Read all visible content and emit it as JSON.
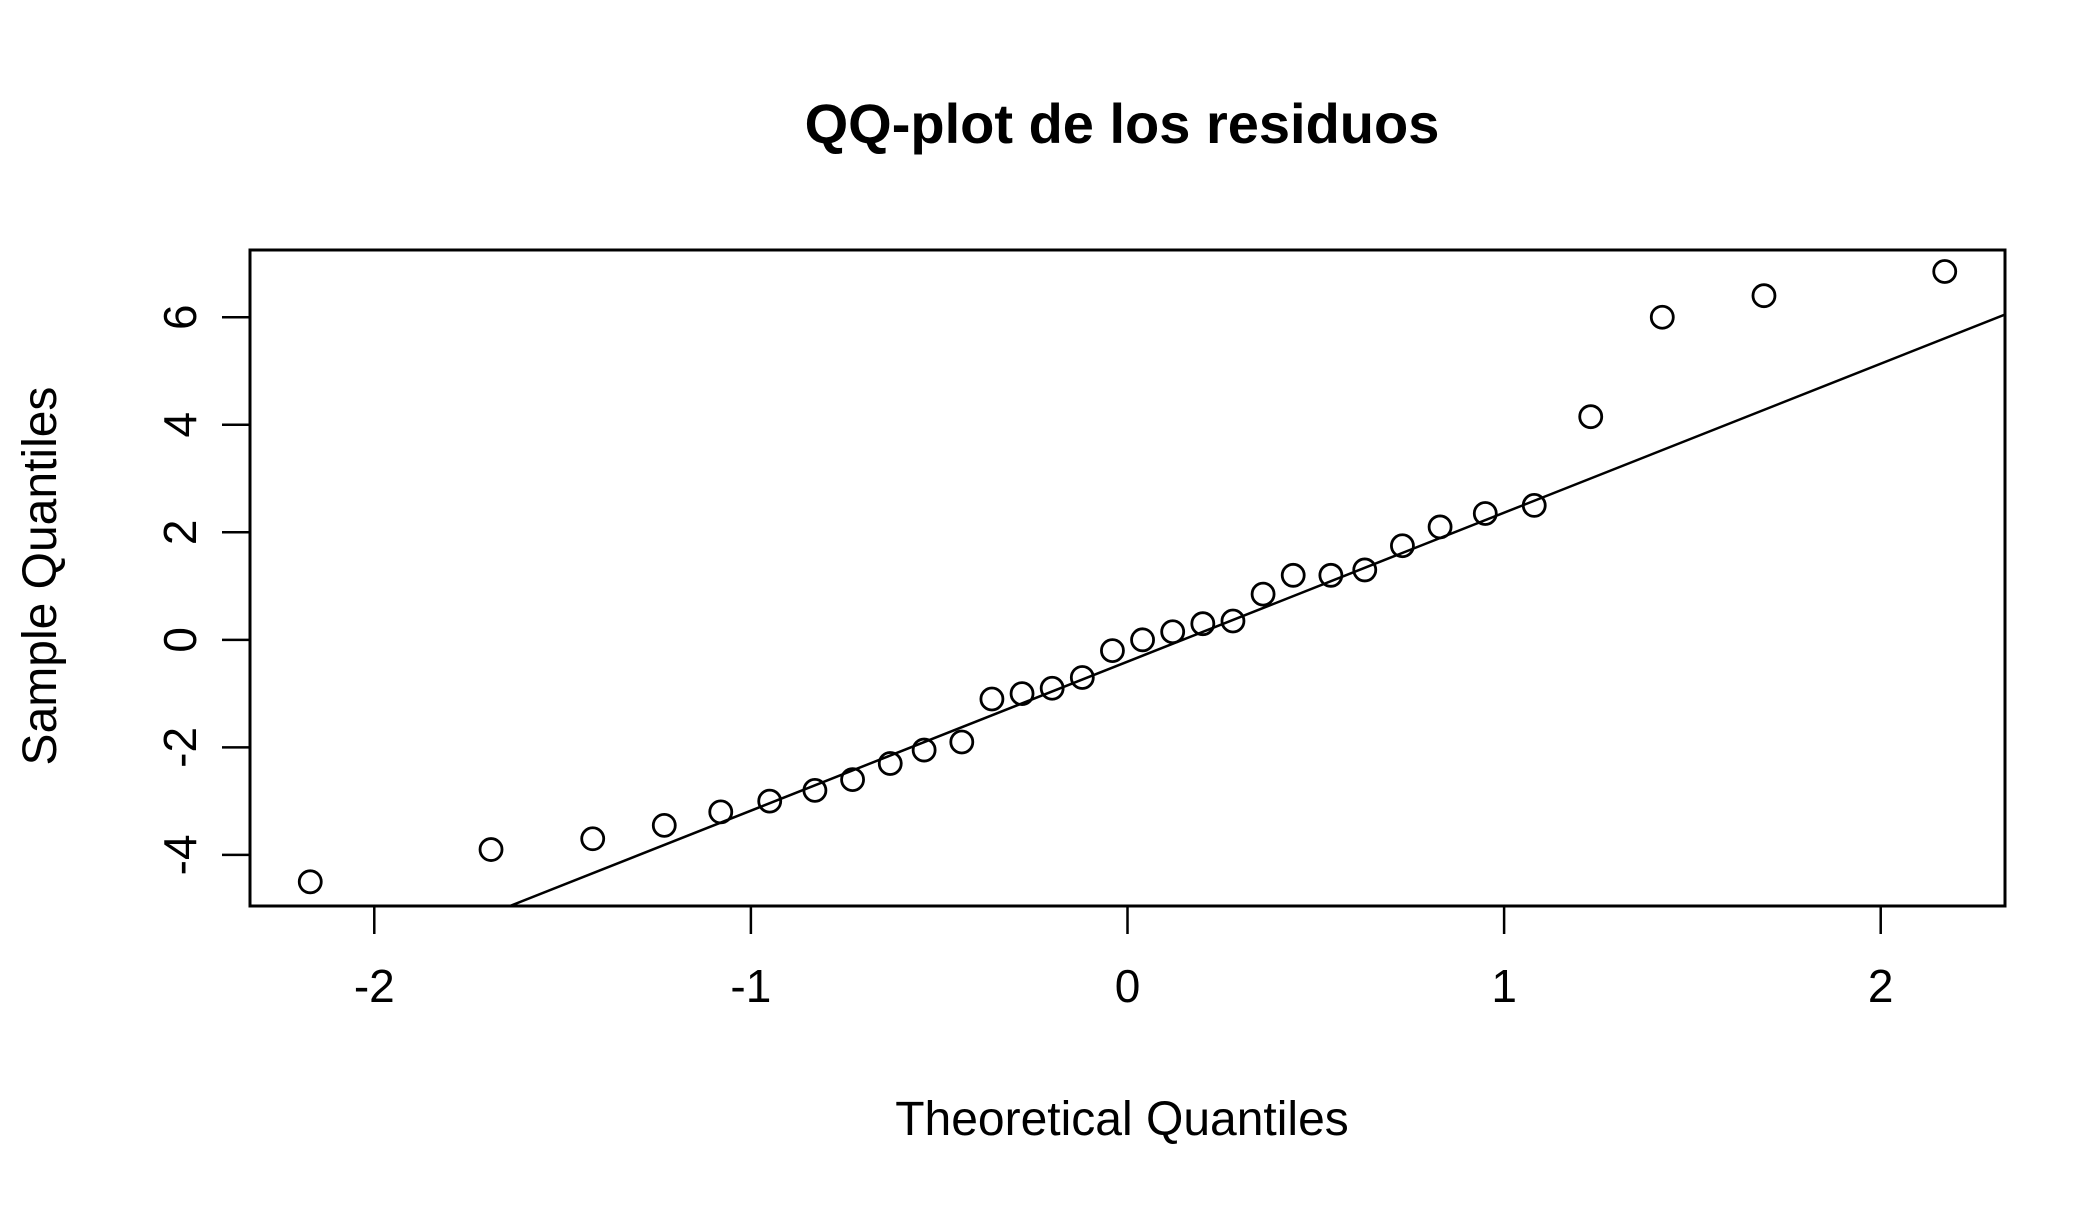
{
  "chart_data": {
    "type": "scatter",
    "title": "QQ-plot de los residuos",
    "xlabel": "Theoretical Quantiles",
    "ylabel": "Sample Quantiles",
    "xlim": [
      -2.33,
      2.33
    ],
    "ylim": [
      -4.95,
      7.25
    ],
    "x_ticks": [
      -2,
      -1,
      0,
      1,
      2
    ],
    "x_tick_labels": [
      "-2",
      "-1",
      "0",
      "1",
      "2"
    ],
    "y_ticks": [
      -4,
      -2,
      0,
      2,
      4,
      6
    ],
    "y_tick_labels": [
      "-4",
      "-2",
      "0",
      "2",
      "4",
      "6"
    ],
    "grid": false,
    "legend": "none",
    "reference_line": {
      "x": [
        -1.64,
        2.33
      ],
      "y": [
        -4.95,
        6.05
      ]
    },
    "points": {
      "x": [
        -2.17,
        -1.69,
        -1.42,
        -1.23,
        -1.08,
        -0.95,
        -0.83,
        -0.73,
        -0.63,
        -0.54,
        -0.44,
        -0.36,
        -0.28,
        -0.2,
        -0.12,
        -0.04,
        0.04,
        0.12,
        0.2,
        0.28,
        0.36,
        0.44,
        0.54,
        0.63,
        0.73,
        0.83,
        0.95,
        1.08,
        1.23,
        1.42,
        1.69,
        2.17
      ],
      "y": [
        -4.5,
        -3.9,
        -3.7,
        -3.45,
        -3.2,
        -3.0,
        -2.8,
        -2.6,
        -2.3,
        -2.05,
        -1.9,
        -1.1,
        -1.0,
        -0.9,
        -0.7,
        -0.2,
        0.0,
        0.15,
        0.3,
        0.35,
        0.85,
        1.2,
        1.2,
        1.3,
        1.75,
        2.1,
        2.35,
        2.5,
        4.15,
        6.0,
        6.4,
        6.85
      ]
    },
    "colors": {
      "foreground": "#000000",
      "background": "#ffffff"
    }
  }
}
